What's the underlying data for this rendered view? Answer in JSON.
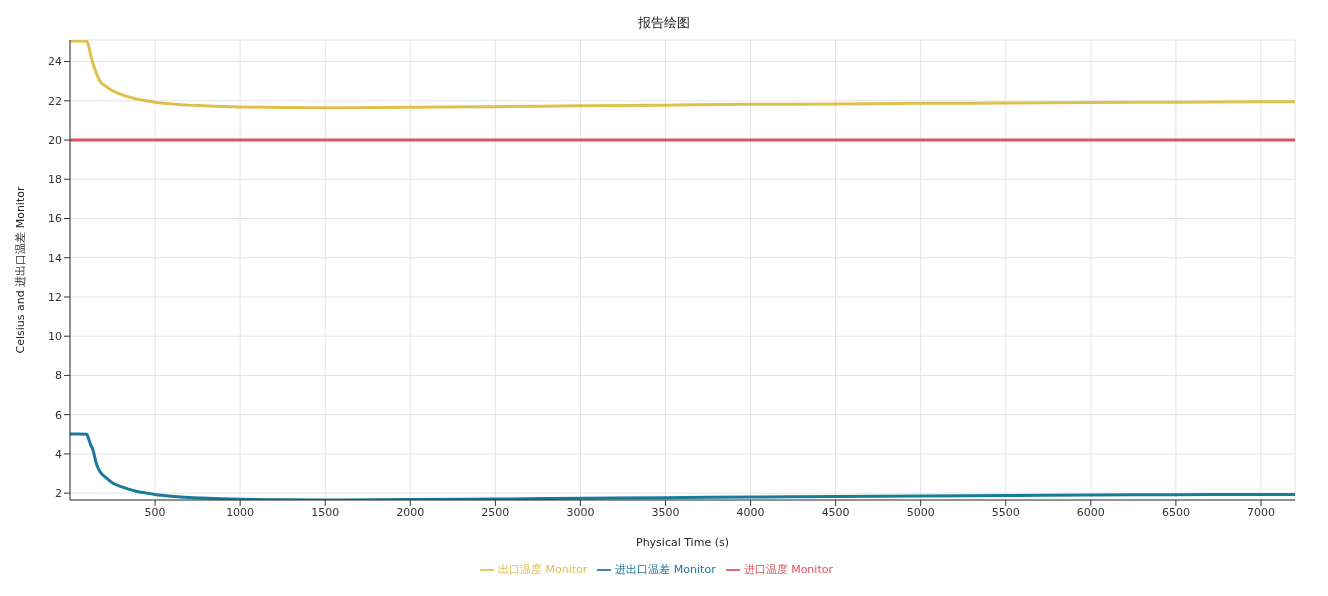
{
  "chart_data": {
    "type": "line",
    "title": "报告绘图",
    "xlabel": "Physical Time (s)",
    "ylabel": "Celsius and 进出口温差 Monitor",
    "x": [
      0,
      50,
      100,
      106,
      120,
      135,
      155,
      176,
      210,
      253,
      300,
      388,
      450,
      500,
      600,
      700,
      782,
      900,
      1000,
      1250,
      1500,
      2000,
      2500,
      3000,
      3500,
      4000,
      4500,
      5000,
      5500,
      6000,
      6500,
      7000,
      7200
    ],
    "series": [
      {
        "name": "出口温度 Monitor",
        "color": "#e0c04c",
        "values": [
          25.05,
          25.05,
          25.03,
          24.9,
          24.4,
          23.9,
          23.4,
          23.0,
          22.75,
          22.5,
          22.33,
          22.1,
          22.0,
          21.93,
          21.84,
          21.78,
          21.75,
          21.71,
          21.69,
          21.66,
          21.65,
          21.67,
          21.7,
          21.75,
          21.78,
          21.82,
          21.84,
          21.87,
          21.89,
          21.92,
          21.93,
          21.95,
          21.95
        ]
      },
      {
        "name": "进出口温差 Monitor",
        "color": "#1a7a99",
        "values": [
          5.02,
          5.02,
          5.0,
          4.85,
          4.5,
          4.2,
          3.5,
          3.1,
          2.8,
          2.5,
          2.33,
          2.1,
          2.0,
          1.93,
          1.84,
          1.78,
          1.75,
          1.71,
          1.69,
          1.66,
          1.65,
          1.67,
          1.7,
          1.74,
          1.77,
          1.8,
          1.83,
          1.85,
          1.88,
          1.9,
          1.92,
          1.93,
          1.93
        ]
      },
      {
        "name": "进口温度 Monitor",
        "color": "#d9545e",
        "values": [
          20,
          20,
          20,
          20,
          20,
          20,
          20,
          20,
          20,
          20,
          20,
          20,
          20,
          20,
          20,
          20,
          20,
          20,
          20,
          20,
          20,
          20,
          20,
          20,
          20,
          20,
          20,
          20,
          20,
          20,
          20,
          20,
          20
        ]
      }
    ],
    "xlim": [
      0,
      7200
    ],
    "ylim": [
      1.65,
      25.1
    ],
    "xticks": [
      500,
      1000,
      1500,
      2000,
      2500,
      3000,
      3500,
      4000,
      4500,
      5000,
      5500,
      6000,
      6500,
      7000
    ],
    "yticks": [
      2,
      4,
      6,
      8,
      10,
      12,
      14,
      16,
      18,
      20,
      22,
      24
    ],
    "grid": true,
    "legend": "bottom",
    "marker": "none",
    "line_style": "solid"
  }
}
